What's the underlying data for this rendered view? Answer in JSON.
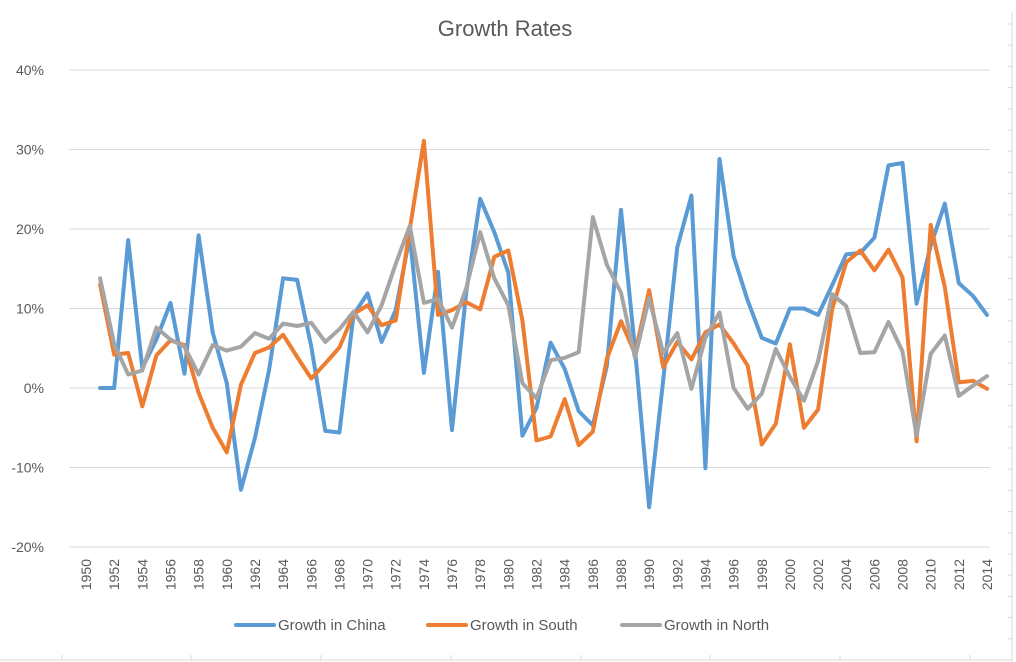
{
  "chart_data": {
    "type": "line",
    "title": "Growth Rates",
    "xlabel": "",
    "ylabel": "",
    "ylim": [
      -20,
      40
    ],
    "xlim": [
      1950,
      2014
    ],
    "y_ticks": [
      "-20%",
      "-10%",
      "0%",
      "10%",
      "20%",
      "30%",
      "40%"
    ],
    "x_ticks": [
      "1950",
      "1952",
      "1954",
      "1956",
      "1958",
      "1960",
      "1962",
      "1964",
      "1966",
      "1968",
      "1970",
      "1972",
      "1974",
      "1976",
      "1978",
      "1980",
      "1982",
      "1984",
      "1986",
      "1988",
      "1990",
      "1992",
      "1994",
      "1996",
      "1998",
      "2000",
      "2002",
      "2004",
      "2006",
      "2008",
      "2010",
      "2012",
      "2014"
    ],
    "grid": true,
    "legend": "bottom",
    "x": [
      1951,
      1952,
      1953,
      1954,
      1955,
      1956,
      1957,
      1958,
      1959,
      1960,
      1961,
      1962,
      1963,
      1964,
      1965,
      1966,
      1967,
      1968,
      1969,
      1970,
      1971,
      1972,
      1973,
      1974,
      1975,
      1976,
      1977,
      1978,
      1979,
      1980,
      1981,
      1982,
      1983,
      1984,
      1985,
      1986,
      1987,
      1988,
      1989,
      1990,
      1991,
      1992,
      1993,
      1994,
      1995,
      1996,
      1997,
      1998,
      1999,
      2000,
      2001,
      2002,
      2003,
      2004,
      2005,
      2006,
      2007,
      2008,
      2009,
      2010,
      2011,
      2012,
      2013,
      2014
    ],
    "series": [
      {
        "name": "Growth in China",
        "color": "#5b9bd5",
        "values": [
          0,
          0,
          18.6,
          2.5,
          6.1,
          10.7,
          1.8,
          19.2,
          7,
          0.6,
          -12.8,
          -6.3,
          2.2,
          13.8,
          13.6,
          5.2,
          -5.4,
          -5.6,
          9.2,
          11.9,
          5.8,
          9.8,
          19.1,
          1.9,
          14.6,
          -5.3,
          11.9,
          23.8,
          19.6,
          14.5,
          -6,
          -2.5,
          5.7,
          2.4,
          -2.9,
          -4.7,
          2.8,
          22.4,
          4.9,
          -15,
          1,
          17.7,
          24.2,
          -10.1,
          28.8,
          16.6,
          11,
          6.3,
          5.6,
          10,
          10,
          9.2,
          12.9,
          16.8,
          17,
          18.9,
          28,
          28.3,
          10.6,
          17.9,
          23.2,
          13.2,
          11.6,
          9.2
        ]
      },
      {
        "name": "Growth in South",
        "color": "#ed7d31",
        "values": [
          13,
          4.2,
          4.4,
          -2.3,
          4.1,
          6,
          5.4,
          -0.6,
          -5,
          -8.1,
          0.4,
          4.4,
          5.1,
          6.7,
          3.9,
          1.2,
          3.1,
          5.1,
          9.3,
          10.4,
          7.9,
          8.5,
          20,
          31.1,
          9.2,
          9.8,
          10.8,
          9.9,
          16.5,
          17.3,
          8.5,
          -6.6,
          -6.1,
          -1.4,
          -7.2,
          -5.5,
          3.7,
          8.4,
          4.3,
          12.3,
          2.6,
          5.8,
          3.6,
          7,
          8,
          5.6,
          2.8,
          -7.1,
          -4.5,
          5.5,
          -5,
          -2.7,
          9.9,
          15.8,
          17.3,
          14.8,
          17.4,
          13.9,
          -6.7,
          20.5,
          12.7,
          0.7,
          0.9,
          -0.1
        ]
      },
      {
        "name": "Growth in North",
        "color": "#a5a5a5",
        "values": [
          13.8,
          5.5,
          1.7,
          2.2,
          7.6,
          6.1,
          5.2,
          1.7,
          5.4,
          4.7,
          5.2,
          6.9,
          6.2,
          8.1,
          7.8,
          8.2,
          5.8,
          7.4,
          9.6,
          7,
          10.4,
          15.6,
          20.4,
          10.7,
          11.2,
          7.6,
          12.5,
          19.6,
          13.8,
          10.4,
          0.6,
          -1.3,
          3.5,
          3.8,
          4.5,
          21.5,
          15.5,
          12,
          3.8,
          11.3,
          4.4,
          6.9,
          -0.1,
          6.3,
          9.5,
          0,
          -2.6,
          -0.7,
          4.9,
          1.4,
          -1.6,
          3.4,
          11.8,
          10.3,
          4.4,
          4.5,
          8.3,
          4.6,
          -6,
          4.3,
          6.6,
          -1,
          0.3,
          1.5
        ]
      }
    ]
  }
}
